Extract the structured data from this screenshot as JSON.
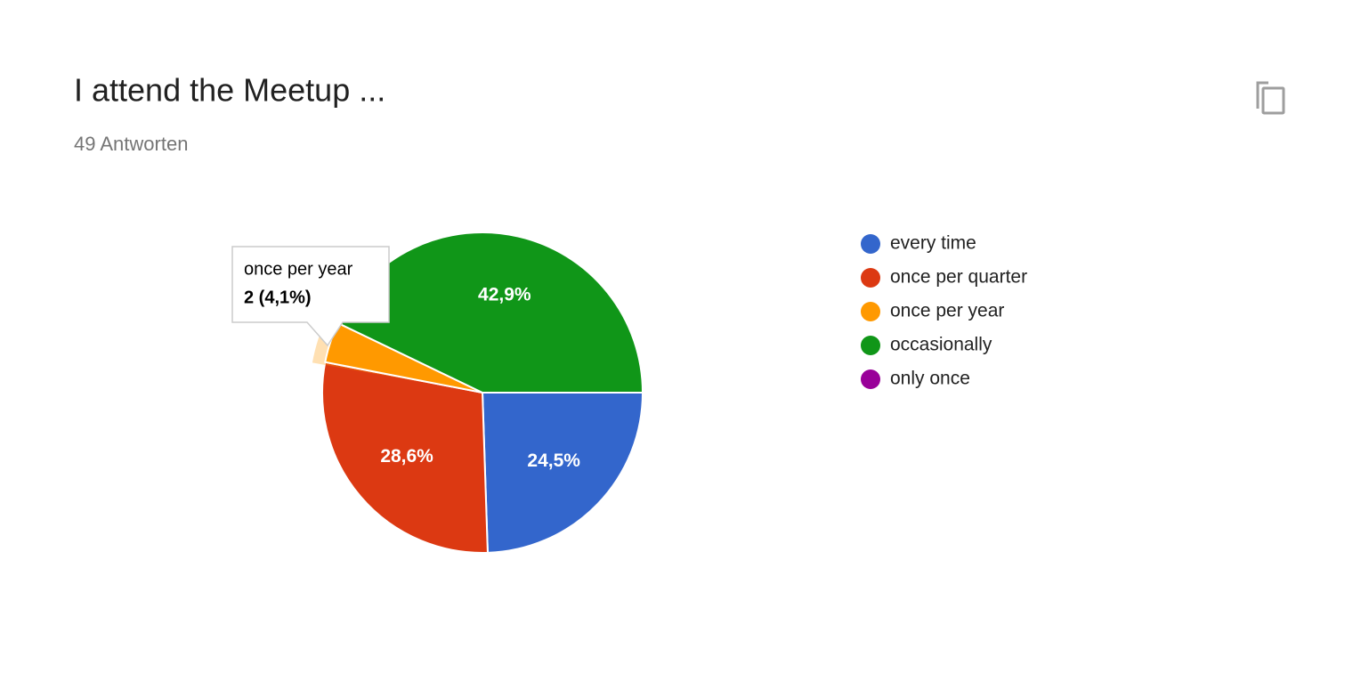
{
  "chart_data": {
    "type": "pie",
    "title": "I attend the Meetup ...",
    "subtitle": "49 Antworten",
    "categories": [
      "every time",
      "once per quarter",
      "once per year",
      "occasionally",
      "only once"
    ],
    "values": [
      24.5,
      28.6,
      4.1,
      42.9,
      0
    ],
    "value_labels": [
      "24,5%",
      "28,6%",
      null,
      "42,9%",
      null
    ],
    "colors": [
      "#3366cc",
      "#dc3912",
      "#ff9900",
      "#109618",
      "#990099"
    ],
    "legend": "right",
    "tooltip": {
      "category": "once per year",
      "label": "2 (4,1%)"
    }
  }
}
